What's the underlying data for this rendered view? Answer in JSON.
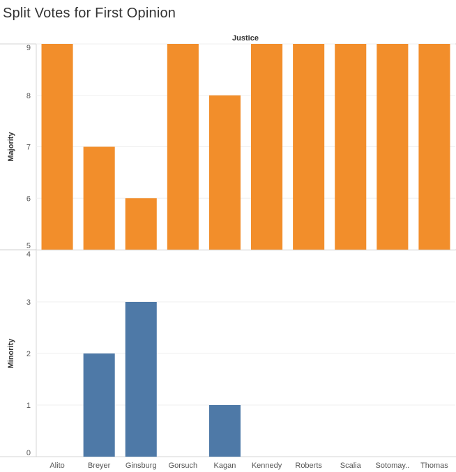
{
  "chart_data": {
    "type": "bar",
    "title": "Split Votes for First Opinion",
    "column_header": "Justice",
    "categories": [
      "Alito",
      "Breyer",
      "Ginsburg",
      "Gorsuch",
      "Kagan",
      "Kennedy",
      "Roberts",
      "Scalia",
      "Sotomay..",
      "Thomas"
    ],
    "panels": [
      {
        "ylabel": "Majority",
        "ylim": [
          5,
          9
        ],
        "ticks": [
          5,
          6,
          7,
          8,
          9
        ],
        "color": "#f28e2b",
        "values": [
          9,
          7,
          6,
          9,
          8,
          9,
          9,
          9,
          9,
          9
        ]
      },
      {
        "ylabel": "Minority",
        "ylim": [
          0,
          4
        ],
        "ticks": [
          0,
          1,
          2,
          3,
          4
        ],
        "color": "#4e79a7",
        "values": [
          0,
          2,
          3,
          0,
          1,
          0,
          0,
          0,
          0,
          0
        ]
      }
    ],
    "grid": true,
    "legend": "none"
  }
}
